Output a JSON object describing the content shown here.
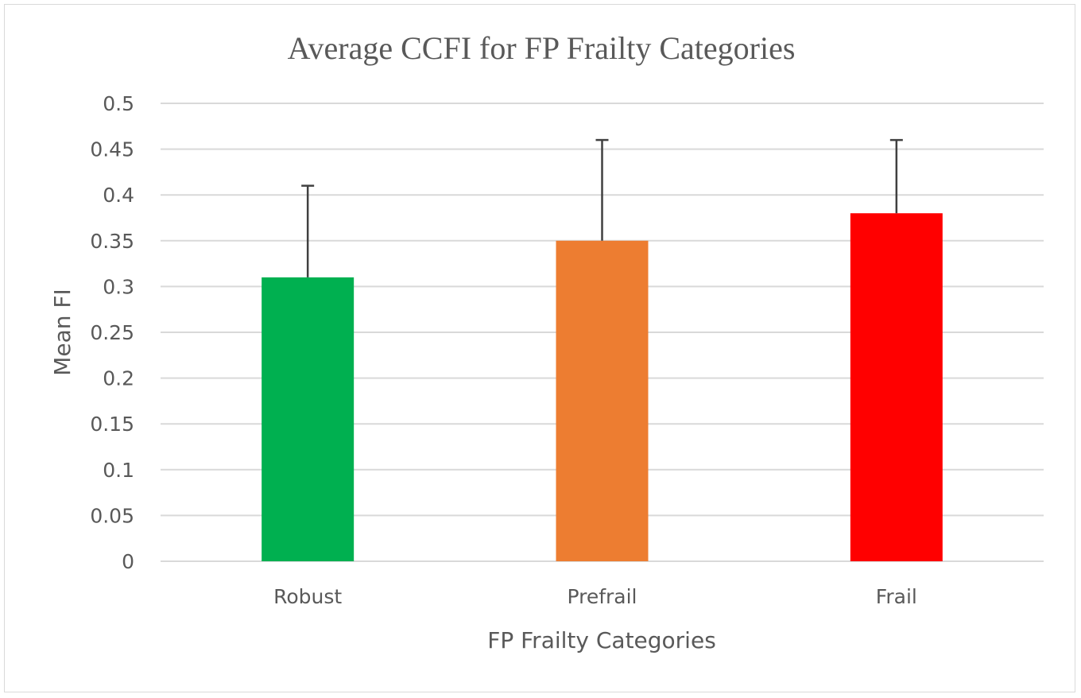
{
  "chart_data": {
    "type": "bar",
    "title": "Average CCFI for FP Frailty Categories",
    "xlabel": "FP Frailty Categories",
    "ylabel": "Mean FI",
    "categories": [
      "Robust",
      "Prefrail",
      "Frail"
    ],
    "values": [
      0.31,
      0.35,
      0.38
    ],
    "error_upper": [
      0.41,
      0.46,
      0.46
    ],
    "colors": [
      "#00b050",
      "#ed7d31",
      "#ff0000"
    ],
    "ylim": [
      0,
      0.5
    ],
    "yticks": [
      "0",
      "0.05",
      "0.1",
      "0.15",
      "0.2",
      "0.25",
      "0.3",
      "0.35",
      "0.4",
      "0.45",
      "0.5"
    ],
    "grid": true,
    "legend": "none"
  }
}
